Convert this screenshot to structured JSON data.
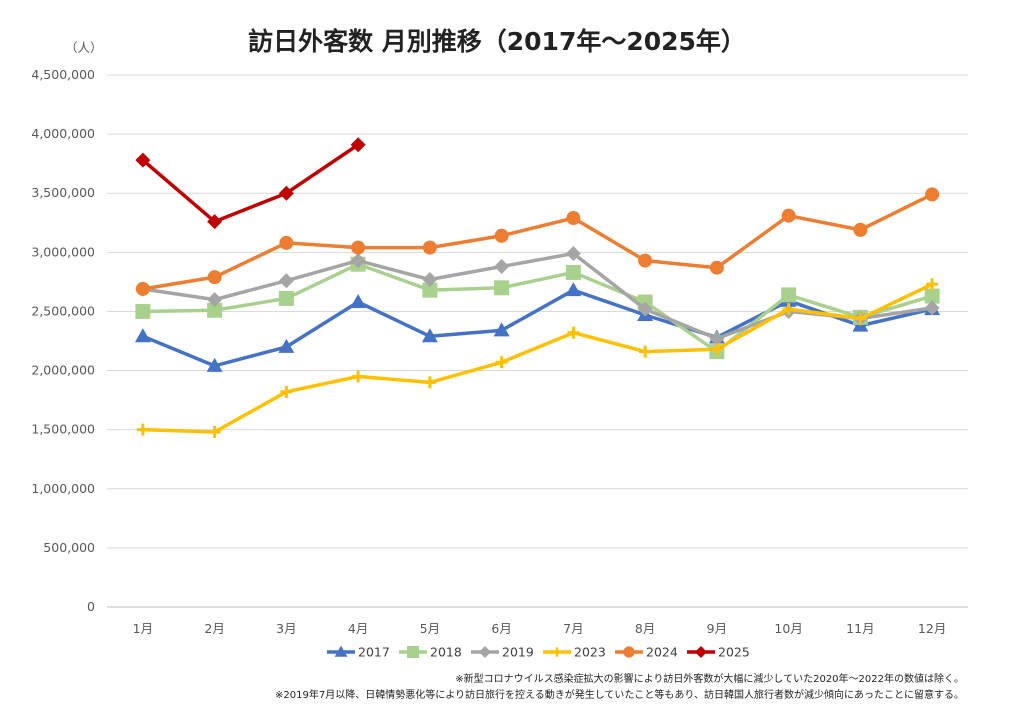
{
  "chart_data": {
    "type": "line",
    "title": "訪日外客数 月別推移（2017年～2025年）",
    "ylabel": "（人）",
    "xlabel": "",
    "categories": [
      "1月",
      "2月",
      "3月",
      "4月",
      "5月",
      "6月",
      "7月",
      "8月",
      "9月",
      "10月",
      "11月",
      "12月"
    ],
    "ylim": [
      0,
      4500000
    ],
    "yticks": [
      0,
      500000,
      1000000,
      1500000,
      2000000,
      2500000,
      3000000,
      3500000,
      4000000,
      4500000
    ],
    "ytick_labels": [
      "0",
      "500,000",
      "1,000,000",
      "1,500,000",
      "2,000,000",
      "2,500,000",
      "3,000,000",
      "3,500,000",
      "4,000,000",
      "4,500,000"
    ],
    "grid": true,
    "legend_position": "bottom",
    "series": [
      {
        "name": "2017",
        "color": "#4472C4",
        "marker": "triangle",
        "values": [
          2290000,
          2040000,
          2200000,
          2580000,
          2290000,
          2340000,
          2680000,
          2470000,
          2280000,
          2590000,
          2380000,
          2520000
        ]
      },
      {
        "name": "2018",
        "color": "#A9D18E",
        "marker": "square",
        "values": [
          2500000,
          2510000,
          2610000,
          2900000,
          2680000,
          2700000,
          2830000,
          2580000,
          2160000,
          2640000,
          2450000,
          2630000
        ]
      },
      {
        "name": "2019",
        "color": "#A5A5A5",
        "marker": "diamond",
        "values": [
          2690000,
          2600000,
          2760000,
          2930000,
          2770000,
          2880000,
          2990000,
          2520000,
          2270000,
          2500000,
          2440000,
          2530000
        ]
      },
      {
        "name": "2023",
        "color": "#FFC000",
        "marker": "plus",
        "values": [
          1500000,
          1480000,
          1820000,
          1950000,
          1900000,
          2070000,
          2320000,
          2160000,
          2180000,
          2520000,
          2440000,
          2730000
        ]
      },
      {
        "name": "2024",
        "color": "#ED7D31",
        "marker": "circle",
        "values": [
          2690000,
          2790000,
          3080000,
          3040000,
          3040000,
          3140000,
          3290000,
          2930000,
          2870000,
          3310000,
          3190000,
          3490000
        ]
      },
      {
        "name": "2025",
        "color": "#C00000",
        "marker": "diamond",
        "values": [
          3780000,
          3260000,
          3500000,
          3910000,
          null,
          null,
          null,
          null,
          null,
          null,
          null,
          null
        ]
      }
    ],
    "annotations": [
      "※新型コロナウイルス感染症拡大の影響により訪日外客数が大幅に減少していた2020年～2022年の数値は除く。",
      "※2019年7月以降、日韓情勢悪化等により訪日旅行を控える動きが発生していたこと等もあり、訪日韓国人旅行者数が減少傾向にあったことに留意する。"
    ]
  }
}
